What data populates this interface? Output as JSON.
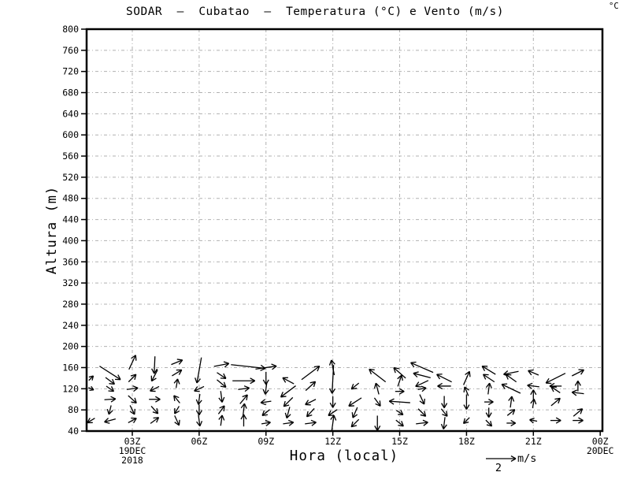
{
  "chart_data": {
    "type": "vector",
    "title": "SODAR  –  Cubatao  –  Temperatura (°C) e Vento (m/s)",
    "unit_note": "°C",
    "x_axis": {
      "label": "Hora (local)",
      "tick_labels": [
        "03Z",
        "06Z",
        "09Z",
        "12Z",
        "15Z",
        "18Z",
        "21Z",
        "00Z"
      ],
      "tick_hours": [
        3,
        6,
        9,
        12,
        15,
        18,
        21,
        24
      ],
      "range_hours": [
        0.95,
        24.1
      ],
      "date_labels": [
        {
          "hour": 3,
          "lines": [
            "19DEC",
            "2018"
          ]
        },
        {
          "hour": 24,
          "lines": [
            "20DEC"
          ]
        }
      ]
    },
    "y_axis": {
      "label": "Altura (m)",
      "min": 40,
      "max": 800,
      "step": 40,
      "ticks": [
        40,
        80,
        120,
        160,
        200,
        240,
        280,
        320,
        360,
        400,
        440,
        480,
        520,
        560,
        600,
        640,
        680,
        720,
        760,
        800
      ]
    },
    "grid": {
      "on": true,
      "style": "dash-dot",
      "color": "#b0b0b0"
    },
    "reference_vector": {
      "value": "2",
      "unit": "m/s",
      "value_ms": 2
    },
    "vectors_format": [
      "hour_local",
      "height_m",
      "u_ms",
      "v_ms"
    ],
    "vectors": [
      [
        1.15,
        140,
        0.3,
        0.3
      ],
      [
        1.15,
        120,
        0.35,
        -0.15
      ],
      [
        1.15,
        60,
        -0.5,
        -0.3
      ],
      [
        2,
        150,
        1.4,
        -0.9
      ],
      [
        2,
        135,
        0.6,
        -0.45
      ],
      [
        2,
        120,
        0.5,
        -0.35
      ],
      [
        2,
        100,
        0.75,
        0.05
      ],
      [
        2,
        80,
        -0.15,
        -0.6
      ],
      [
        2,
        60,
        -0.75,
        -0.2
      ],
      [
        3,
        170,
        0.45,
        0.95
      ],
      [
        3,
        140,
        0.5,
        0.5
      ],
      [
        3,
        120,
        0.75,
        0.1
      ],
      [
        3,
        100,
        0.55,
        -0.5
      ],
      [
        3,
        80,
        0.3,
        -0.6
      ],
      [
        3,
        60,
        0.55,
        0.3
      ],
      [
        4,
        165,
        -0.05,
        -1.15
      ],
      [
        4,
        145,
        -0.4,
        -0.75
      ],
      [
        4,
        120,
        -0.6,
        -0.3
      ],
      [
        4,
        100,
        0.75,
        0
      ],
      [
        4,
        80,
        0.45,
        -0.5
      ],
      [
        4,
        60,
        0.55,
        0.4
      ],
      [
        5,
        170,
        0.75,
        0.3
      ],
      [
        5,
        150,
        0.65,
        0.4
      ],
      [
        5,
        130,
        0.1,
        0.6
      ],
      [
        5,
        100,
        -0.4,
        0.5
      ],
      [
        5,
        80,
        -0.3,
        -0.5
      ],
      [
        5,
        60,
        0.3,
        -0.65
      ],
      [
        6,
        155,
        -0.3,
        -1.7
      ],
      [
        6,
        120,
        -0.65,
        -0.3
      ],
      [
        6,
        100,
        -0.1,
        -0.7
      ],
      [
        6,
        80,
        0,
        -0.7
      ],
      [
        6,
        60,
        0.1,
        -0.75
      ],
      [
        7,
        165,
        1.0,
        0.2
      ],
      [
        7,
        145,
        0.6,
        -0.4
      ],
      [
        7,
        130,
        0.6,
        -0.5
      ],
      [
        7,
        105,
        0.1,
        -0.75
      ],
      [
        7,
        80,
        0.4,
        0.55
      ],
      [
        7,
        60,
        0.1,
        0.7
      ],
      [
        8.2,
        162,
        2.3,
        -0.25
      ],
      [
        8,
        135,
        1.5,
        0
      ],
      [
        8,
        120,
        0.75,
        0.1
      ],
      [
        8,
        100,
        0.5,
        0.6
      ],
      [
        8,
        80,
        0.1,
        0.85
      ],
      [
        8,
        60,
        0,
        0.8
      ],
      [
        9,
        160,
        1.4,
        0.2
      ],
      [
        9,
        140,
        0,
        -0.85
      ],
      [
        9,
        120,
        -0.1,
        -0.75
      ],
      [
        9,
        95,
        -0.7,
        -0.1
      ],
      [
        9,
        75,
        -0.5,
        -0.4
      ],
      [
        9,
        55,
        0.6,
        0.1
      ],
      [
        10,
        135,
        -0.75,
        0.4
      ],
      [
        10,
        115,
        -1.0,
        -0.75
      ],
      [
        10,
        95,
        -0.6,
        -0.6
      ],
      [
        10,
        75,
        -0.2,
        -0.75
      ],
      [
        10,
        55,
        0.7,
        0.1
      ],
      [
        11,
        150,
        1.2,
        0.9
      ],
      [
        11,
        125,
        0.65,
        0.6
      ],
      [
        11,
        95,
        -0.7,
        -0.35
      ],
      [
        11,
        75,
        -0.5,
        -0.55
      ],
      [
        11,
        55,
        0.75,
        0.1
      ],
      [
        12,
        160,
        -0.2,
        1.0
      ],
      [
        12,
        138,
        -0.1,
        -1.9
      ],
      [
        12,
        95,
        0,
        -0.75
      ],
      [
        12,
        75,
        -0.6,
        -0.4
      ],
      [
        12,
        55,
        0.15,
        1.05
      ],
      [
        13,
        125,
        -0.5,
        -0.4
      ],
      [
        13,
        95,
        -0.85,
        -0.55
      ],
      [
        13,
        75,
        -0.3,
        -0.7
      ],
      [
        13,
        55,
        -0.5,
        -0.5
      ],
      [
        14,
        145,
        -1.1,
        0.85
      ],
      [
        14,
        120,
        -0.2,
        0.75
      ],
      [
        14,
        95,
        0.4,
        -0.55
      ],
      [
        14,
        55,
        0,
        -1.0
      ],
      [
        15,
        150,
        -0.8,
        0.7
      ],
      [
        15,
        135,
        0.25,
        0.75
      ],
      [
        15,
        115,
        0.6,
        0
      ],
      [
        15,
        95,
        -1.4,
        0.1
      ],
      [
        15,
        75,
        0.45,
        -0.3
      ],
      [
        15,
        55,
        0.5,
        -0.4
      ],
      [
        16,
        160,
        -1.5,
        0.65
      ],
      [
        16,
        145,
        -1.15,
        0.3
      ],
      [
        16,
        130,
        -0.85,
        -0.4
      ],
      [
        16,
        120,
        0.55,
        0.1
      ],
      [
        16,
        100,
        0.3,
        -0.65
      ],
      [
        16,
        75,
        0.5,
        -0.5
      ],
      [
        16,
        55,
        0.8,
        0.1
      ],
      [
        17,
        140,
        -1.0,
        0.5
      ],
      [
        17,
        125,
        -0.9,
        0
      ],
      [
        17,
        95,
        0,
        -0.8
      ],
      [
        17,
        75,
        0.4,
        -0.5
      ],
      [
        17,
        55,
        -0.1,
        -0.8
      ],
      [
        18,
        140,
        0.4,
        0.9
      ],
      [
        18,
        115,
        -0.25,
        0.6
      ],
      [
        18,
        95,
        0,
        -1.0
      ],
      [
        18,
        60,
        -0.4,
        -0.4
      ],
      [
        19,
        155,
        -0.9,
        0.55
      ],
      [
        19,
        140,
        -0.75,
        0.5
      ],
      [
        19,
        120,
        0.1,
        0.75
      ],
      [
        19,
        95,
        0.6,
        0
      ],
      [
        19,
        75,
        0,
        -0.65
      ],
      [
        19,
        55,
        0.4,
        -0.4
      ],
      [
        20,
        150,
        -1.0,
        -0.2
      ],
      [
        20,
        140,
        -0.7,
        0.5
      ],
      [
        20,
        120,
        -1.25,
        0.6
      ],
      [
        20,
        95,
        0.1,
        0.75
      ],
      [
        20,
        75,
        0.5,
        0.4
      ],
      [
        20,
        55,
        0.6,
        0
      ],
      [
        21,
        150,
        -0.7,
        0.3
      ],
      [
        21,
        125,
        -0.8,
        0.1
      ],
      [
        21,
        108,
        0,
        0.7
      ],
      [
        21,
        92,
        0.1,
        0.6
      ],
      [
        21,
        60,
        -0.5,
        0.1
      ],
      [
        22,
        140,
        -1.3,
        -0.65
      ],
      [
        22,
        125,
        -0.8,
        0
      ],
      [
        22,
        118,
        -0.6,
        0.4
      ],
      [
        22,
        95,
        0.6,
        0.5
      ],
      [
        22,
        60,
        0.7,
        0
      ],
      [
        23,
        150,
        0.8,
        0.4
      ],
      [
        23,
        125,
        0,
        0.7
      ],
      [
        23,
        112,
        -0.8,
        0.1
      ],
      [
        23,
        75,
        0.6,
        0.5
      ],
      [
        23,
        60,
        0.7,
        0
      ]
    ]
  }
}
